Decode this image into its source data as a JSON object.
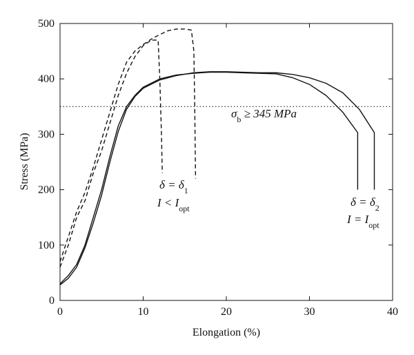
{
  "chart_data": {
    "type": "line",
    "x_label": "Elongation (%)",
    "y_label": "Stress (MPa)",
    "xlim": [
      0,
      40
    ],
    "ylim": [
      0,
      500
    ],
    "xticks": [
      0,
      10,
      20,
      30,
      40
    ],
    "yticks": [
      0,
      100,
      200,
      300,
      400,
      500
    ],
    "reference_line": {
      "y": 350,
      "style": "dotted",
      "color": "#222222"
    },
    "series": [
      {
        "color": "#111111",
        "dashed": false,
        "x": [
          0,
          1,
          2,
          3,
          4,
          5,
          6,
          7,
          8,
          9,
          10,
          12,
          14,
          16,
          18,
          20,
          22,
          24,
          26,
          28,
          30,
          32,
          34,
          35.8,
          35.8
        ],
        "values": [
          30,
          45,
          65,
          100,
          150,
          200,
          260,
          315,
          350,
          370,
          385,
          400,
          407,
          410,
          412,
          412,
          411,
          410,
          409,
          402,
          390,
          370,
          340,
          303,
          200
        ]
      },
      {
        "color": "#111111",
        "dashed": false,
        "x": [
          0,
          1,
          2,
          3,
          4,
          5,
          6,
          7,
          8,
          9,
          10,
          12,
          14,
          16,
          18,
          20,
          22,
          24,
          26,
          28,
          30,
          32,
          34,
          36,
          37.8,
          37.8
        ],
        "values": [
          28,
          40,
          60,
          95,
          140,
          190,
          250,
          305,
          345,
          368,
          383,
          398,
          406,
          411,
          413,
          413,
          412,
          411,
          411,
          408,
          402,
          392,
          375,
          345,
          303,
          200
        ]
      },
      {
        "color": "#111111",
        "dashed": true,
        "x": [
          0,
          1,
          2,
          3,
          4,
          5,
          6,
          7,
          8,
          9,
          10,
          11,
          11.8,
          12,
          12.2,
          12.3
        ],
        "values": [
          60,
          100,
          150,
          180,
          230,
          270,
          320,
          370,
          410,
          440,
          460,
          470,
          470,
          400,
          300,
          230
        ]
      },
      {
        "color": "#111111",
        "dashed": true,
        "x": [
          0,
          1,
          2,
          3,
          4,
          5,
          6,
          7,
          8,
          9,
          10,
          11,
          12,
          13,
          14,
          15,
          15.8,
          16.1,
          16.2,
          16.3
        ],
        "values": [
          70,
          115,
          160,
          195,
          240,
          290,
          340,
          390,
          430,
          450,
          462,
          472,
          480,
          487,
          490,
          490,
          488,
          450,
          350,
          220
        ]
      }
    ],
    "annotations": [
      {
        "parts": [
          {
            "text": "σ"
          },
          {
            "text": "b",
            "sub": true
          },
          {
            "text": " ≥ 345 MPa"
          }
        ]
      },
      {
        "parts": [
          {
            "text": "δ = δ"
          },
          {
            "text": "1",
            "sub": true
          }
        ]
      },
      {
        "parts": [
          {
            "text": "I < I"
          },
          {
            "text": "opt",
            "sub": true
          }
        ]
      },
      {
        "parts": [
          {
            "text": "δ = δ"
          },
          {
            "text": "2",
            "sub": true
          }
        ]
      },
      {
        "parts": [
          {
            "text": "I = I"
          },
          {
            "text": "opt",
            "sub": true
          }
        ]
      }
    ]
  }
}
